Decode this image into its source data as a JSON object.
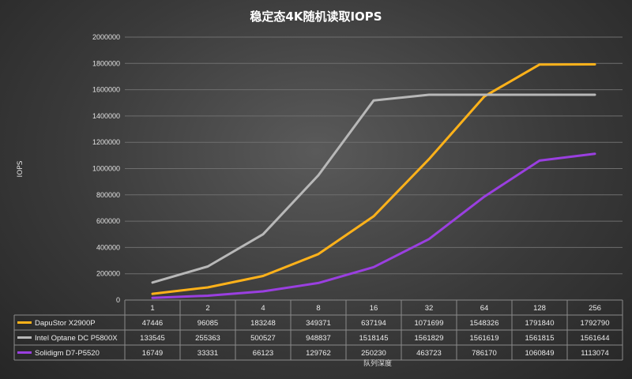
{
  "chart_data": {
    "type": "line",
    "title": "稳定态4K随机读取IOPS",
    "xlabel": "队列深度",
    "ylabel": "IOPS",
    "categories": [
      "1",
      "2",
      "4",
      "8",
      "16",
      "32",
      "64",
      "128",
      "256"
    ],
    "ylim": [
      0,
      2000000
    ],
    "yticks": [
      "0",
      "200000",
      "400000",
      "600000",
      "800000",
      "1000000",
      "1200000",
      "1400000",
      "1600000",
      "1800000",
      "2000000"
    ],
    "grid": true,
    "legend": "data-table-left",
    "series": [
      {
        "name": "DapuStor X2900P",
        "color": "#ffb21a",
        "values": [
          47446,
          96085,
          183248,
          349371,
          637194,
          1071699,
          1548326,
          1791840,
          1792790
        ]
      },
      {
        "name": "Intel Optane DC P5800X",
        "color": "#b8b8b8",
        "values": [
          133545,
          255363,
          500527,
          948837,
          1518145,
          1561829,
          1561619,
          1561815,
          1561644
        ]
      },
      {
        "name": "Solidigm D7-P5520",
        "color": "#9a3fe0",
        "values": [
          16749,
          33331,
          66123,
          129762,
          250230,
          463723,
          786170,
          1060849,
          1113074
        ]
      }
    ]
  }
}
